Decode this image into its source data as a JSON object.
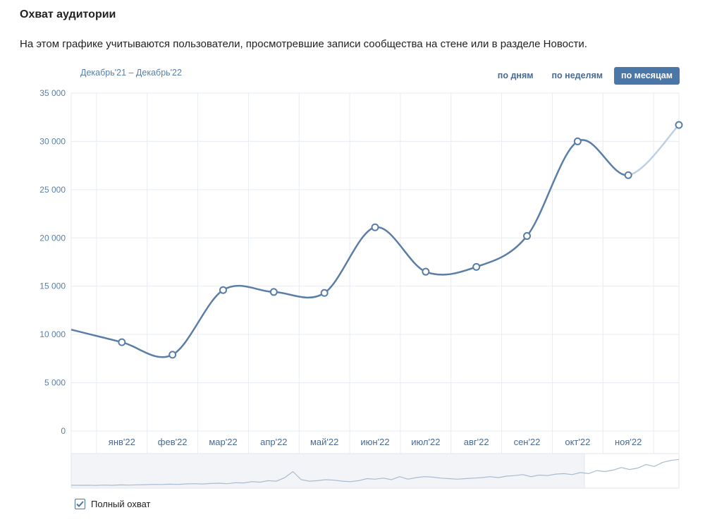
{
  "header": {
    "title": "Охват аудитории",
    "description": "На этом графике учитываются пользователи, просмотревшие записи сообщества на стене или в разделе Новости."
  },
  "period_label": "Декабрь'21 – Декабрь'22",
  "tabs": [
    {
      "label": "по дням",
      "active": false
    },
    {
      "label": "по неделям",
      "active": false
    },
    {
      "label": "по месяцам",
      "active": true
    }
  ],
  "legend": {
    "label": "Полный охват",
    "checked": true
  },
  "colors": {
    "line": "#5b7ea6",
    "line_partial": "#bfd0e3",
    "grid": "#e7ecf2",
    "accent": "#4a76a8"
  },
  "chart_data": {
    "type": "line",
    "title": "",
    "xlabel": "",
    "ylabel": "",
    "ylim": [
      0,
      35000
    ],
    "y_ticks": [
      "0",
      "5 000",
      "10 000",
      "15 000",
      "20 000",
      "25 000",
      "30 000",
      "35 000"
    ],
    "x_tick_labels": [
      "янв'22",
      "фев'22",
      "мар'22",
      "апр'22",
      "май'22",
      "июн'22",
      "июл'22",
      "авг'22",
      "сен'22",
      "окт'22",
      "ноя'22"
    ],
    "grid": true,
    "series": [
      {
        "values": [
          {
            "x": "дек'21",
            "y": 10500
          },
          {
            "x": "янв'22",
            "y": 9200
          },
          {
            "x": "фев'22",
            "y": 7900
          },
          {
            "x": "мар'22",
            "y": 14600
          },
          {
            "x": "апр'22",
            "y": 14400
          },
          {
            "x": "май'22",
            "y": 14300
          },
          {
            "x": "июн'22",
            "y": 21100
          },
          {
            "x": "июл'22",
            "y": 16500
          },
          {
            "x": "авг'22",
            "y": 17000
          },
          {
            "x": "сен'22",
            "y": 20200
          },
          {
            "x": "окт'22",
            "y": 30000
          },
          {
            "x": "ноя'22",
            "y": 26500
          },
          {
            "x": "дек'22",
            "y": 31700
          }
        ]
      }
    ],
    "overview_series": [
      1.5,
      1.4,
      1.5,
      1.3,
      1.6,
      1.4,
      1.8,
      1.6,
      1.9,
      2.0,
      2.3,
      2.2,
      2.5,
      2.3,
      2.8,
      3.0,
      2.7,
      3.2,
      3.5,
      3.0,
      4.0,
      3.8,
      5.0,
      4.5,
      6.0,
      5.5,
      9.0,
      15.0,
      7.0,
      5.5,
      6.0,
      7.0,
      6.5,
      5.5,
      5.0,
      6.0,
      8.0,
      7.5,
      8.5,
      7.0,
      10.0,
      7.5,
      9.0,
      10.0,
      9.5,
      8.5,
      8.0,
      7.5,
      8.0,
      8.5,
      9.0,
      10.0,
      9.0,
      10.5,
      11.0,
      12.0,
      10.0,
      11.5,
      11.0,
      12.5,
      13.0,
      12.0,
      14.0,
      13.0,
      16.0,
      15.0,
      16.5,
      19.0,
      17.0,
      18.5,
      22.0,
      20.0,
      24.0,
      26.0,
      27.0
    ]
  }
}
